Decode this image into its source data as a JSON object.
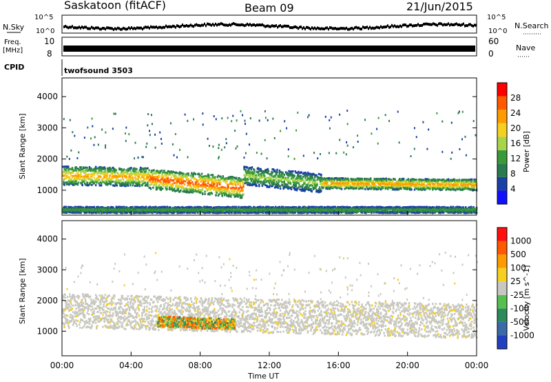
{
  "header": {
    "station": "Saskatoon (fitACF)",
    "beam": "Beam 09",
    "date": "21/Jun/2015"
  },
  "strips": {
    "nsky_label": "N.Sky",
    "nsky_ticks": [
      "10^5",
      "10^0"
    ],
    "nsearch_label": "N.Search",
    "nsearch_ticks": [
      "10^5",
      "10^0"
    ],
    "freq_label": "Freq.",
    "freq_unit": "[MHz]",
    "freq_ticks": [
      "10",
      "8"
    ],
    "nave_label": "Nave",
    "nave_ticks": [
      "60",
      "0"
    ],
    "cpid_label": "CPID",
    "cpid_value": "twofsound 3503"
  },
  "colors": {
    "power_scale": [
      "#1010ff",
      "#1a3fa8",
      "#2a7a4f",
      "#3a9a3a",
      "#a9d44a",
      "#f5d020",
      "#ff9a00",
      "#ff5a00",
      "#ff0000"
    ],
    "velocity_scale": [
      "#2040c0",
      "#3a6aa8",
      "#2a8a5a",
      "#55c050",
      "#c8c8c0",
      "#f5d020",
      "#ff9a00",
      "#ff5a00",
      "#ff1010"
    ]
  },
  "chart_data": [
    {
      "type": "heatmap",
      "panel": "power",
      "ylabel": "Slant Range [km]",
      "yticks": [
        "4000",
        "3000",
        "2000",
        "1000"
      ],
      "ylim": [
        200,
        4600
      ],
      "xlim": [
        0,
        24
      ],
      "colorbar_label": "Power [dB]",
      "colorbar_ticks": [
        "28",
        "24",
        "20",
        "16",
        "12",
        "8",
        "4"
      ],
      "scatter_bands": [
        {
          "t0": 0.0,
          "t1": 5.0,
          "center": [
            1500,
            1450
          ],
          "width": 600,
          "peak_db": 24
        },
        {
          "t0": 5.0,
          "t1": 10.5,
          "center": [
            1400,
            1100
          ],
          "width": 650,
          "peak_db": 30
        },
        {
          "t0": 10.5,
          "t1": 15.0,
          "center": [
            1500,
            1250
          ],
          "width": 600,
          "peak_db": 16
        },
        {
          "t0": 15.0,
          "t1": 24.0,
          "center": [
            1250,
            1200
          ],
          "width": 350,
          "peak_db": 26
        },
        {
          "t0": 0.0,
          "t1": 24.0,
          "center": [
            400,
            400
          ],
          "width": 200,
          "peak_db": 14
        }
      ]
    },
    {
      "type": "heatmap",
      "panel": "velocity",
      "ylabel": "Slant Range [km]",
      "yticks": [
        "4000",
        "3000",
        "2000",
        "1000"
      ],
      "ylim": [
        200,
        4600
      ],
      "xlim": [
        0,
        24
      ],
      "colorbar_label": "Velocity [m s^-1]",
      "colorbar_ticks": [
        "1000",
        "500",
        "100",
        "25",
        "-25",
        "-100",
        "-500",
        "-1000"
      ],
      "xticks": [
        "00:00",
        "04:00",
        "08:00",
        "12:00",
        "16:00",
        "20:00",
        "00:00"
      ],
      "xlabel": "Time UT",
      "scatter_bands": [
        {
          "t0": 0.0,
          "t1": 24.0,
          "center": [
            1700,
            1350
          ],
          "width": 1100,
          "velocity": 0
        },
        {
          "t0": 5.5,
          "t1": 10.0,
          "center": [
            1350,
            1250
          ],
          "width": 350,
          "velocity": -200
        }
      ]
    }
  ]
}
